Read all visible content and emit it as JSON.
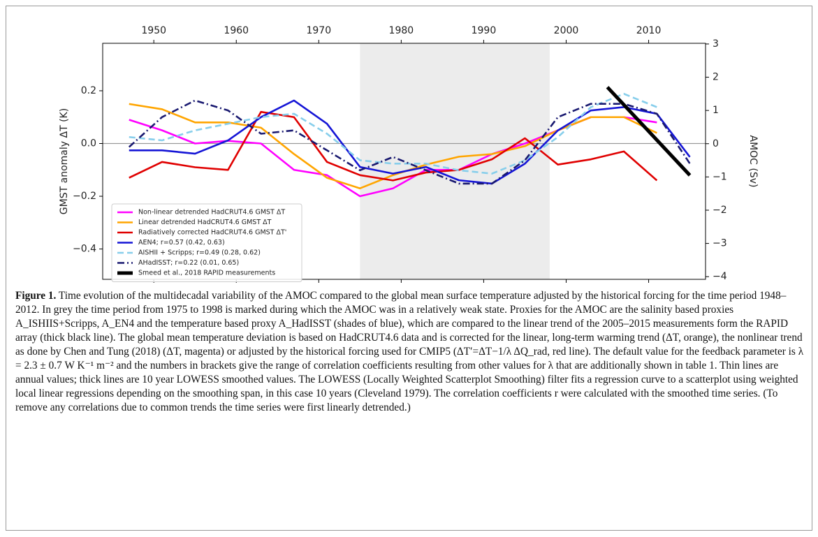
{
  "chart_data": {
    "type": "line",
    "ylabel": "GMST anomaly ΔT (K)",
    "y2label": "AMOC (Sv)",
    "xlim": [
      1943.8,
      2016.9
    ],
    "xticks": [
      1950,
      1960,
      1970,
      1980,
      1990,
      2000,
      2010
    ],
    "ylim": [
      -0.515,
      0.38
    ],
    "yticks": [
      {
        "value": -0.4,
        "label": "−0.4"
      },
      {
        "value": -0.2,
        "label": "−0.2"
      },
      {
        "value": 0,
        "label": "0.0"
      },
      0.2
    ],
    "y2lim": [
      -4.08,
      3.02
    ],
    "y2ticks": [
      {
        "value": -4,
        "label": "−4"
      },
      {
        "value": -3,
        "label": "−3"
      },
      {
        "value": -2,
        "label": "−2"
      },
      {
        "value": -1,
        "label": "−1"
      },
      0,
      1,
      2,
      3
    ],
    "shaded_period": [
      1975,
      1998
    ],
    "legend": "lower left",
    "x": [
      1947,
      1951,
      1955,
      1959,
      1963,
      1967,
      1971,
      1975,
      1979,
      1983,
      1987,
      1991,
      1995,
      1999,
      2003,
      2007,
      2011,
      2015
    ],
    "series": [
      {
        "name": "Non-linear detrended HadCRUT4.6 GMST ΔT",
        "color": "#ff00ff",
        "style": "solid",
        "values": [
          0.09,
          0.05,
          0.0,
          0.01,
          0.0,
          -0.1,
          -0.12,
          -0.2,
          -0.17,
          -0.1,
          -0.1,
          -0.04,
          0.0,
          0.05,
          0.1,
          0.1,
          0.08,
          null
        ]
      },
      {
        "name": "Linear detrended HadCRUT4.6 GMST ΔT",
        "color": "#ffa500",
        "style": "solid",
        "values": [
          0.15,
          0.13,
          0.08,
          0.08,
          0.06,
          -0.04,
          -0.13,
          -0.17,
          -0.12,
          -0.08,
          -0.05,
          -0.04,
          -0.01,
          0.05,
          0.1,
          0.1,
          0.04,
          null
        ]
      },
      {
        "name": "Radiatively corrected HadCRUT4.6 GMST ΔT'",
        "color": "#e00000",
        "style": "solid",
        "values": [
          -0.13,
          -0.07,
          -0.09,
          -0.1,
          0.12,
          0.1,
          -0.07,
          -0.12,
          -0.14,
          -0.11,
          -0.1,
          -0.06,
          0.02,
          -0.08,
          -0.06,
          -0.03,
          -0.14,
          null
        ]
      },
      {
        "name": "AEN4; r=0.57 (0.42, 0.63)",
        "color": "#1515d6",
        "style": "solid",
        "axis": "y2",
        "values": [
          -0.2,
          -0.2,
          -0.3,
          0.1,
          0.8,
          1.3,
          0.6,
          -0.7,
          -0.9,
          -0.7,
          -1.1,
          -1.2,
          -0.6,
          0.4,
          1.0,
          1.1,
          0.9,
          -0.4
        ]
      },
      {
        "name": "AISHII + Scripps; r=0.49 (0.28, 0.62)",
        "color": "#87ceeb",
        "style": "dashed",
        "axis": "y2",
        "values": [
          0.2,
          0.1,
          0.4,
          0.6,
          0.8,
          0.9,
          0.3,
          -0.5,
          -0.6,
          -0.6,
          -0.8,
          -0.9,
          -0.5,
          0.2,
          1.1,
          1.5,
          1.1,
          null
        ]
      },
      {
        "name": "AHadISST; r=0.22 (0.01, 0.65)",
        "color": "#191970",
        "style": "dashdot",
        "axis": "y2",
        "values": [
          -0.1,
          0.8,
          1.3,
          1.0,
          0.3,
          0.4,
          -0.2,
          -0.8,
          -0.4,
          -0.8,
          -1.2,
          -1.2,
          -0.5,
          0.8,
          1.2,
          1.2,
          0.9,
          -0.6
        ]
      },
      {
        "name": "Smeed et al., 2018 RAPID measurements",
        "color": "#000000",
        "style": "thick",
        "axis": "y2",
        "x": [
          2005,
          2015
        ],
        "values": [
          1.7,
          -0.95
        ]
      }
    ]
  },
  "caption": {
    "label": "Figure 1.",
    "text": "Time evolution of the multidecadal variability of the AMOC compared to the global mean surface temperature adjusted by the historical forcing for the time period 1948–2012. In grey the time period from 1975 to 1998 is marked during which the AMOC was in a relatively weak state. Proxies for the AMOC are the salinity based proxies A_ISHIIS+Scripps, A_EN4 and the temperature based proxy A_HadISST (shades of blue), which are compared to the linear trend of the 2005–2015 measurements form the RAPID array (thick black line). The global mean temperature deviation is based on HadCRUT4.6 data and is corrected for the linear, long-term warming trend (ΔT, orange), the nonlinear trend as done by Chen and Tung (2018) (ΔT, magenta) or adjusted by the historical forcing used for CMIP5 (ΔT′=ΔT−1/λ ΔQ_rad, red line). The default value for the feedback parameter is λ = 2.3 ± 0.7 W K⁻¹ m⁻² and the numbers in brackets give the range of correlation coefficients resulting from other values for λ that are additionally shown in table 1. Thin lines are annual values; thick lines are 10 year LOWESS smoothed values. The LOWESS (Locally Weighted Scatterplot Smoothing) filter fits a regression curve to a scatterplot using weighted local linear regressions depending on the smoothing span, in this case 10 years (Cleveland 1979). The correlation coefficients r were calculated with the smoothed time series. (To remove any correlations due to common trends the time series were first linearly detrended.)"
  }
}
